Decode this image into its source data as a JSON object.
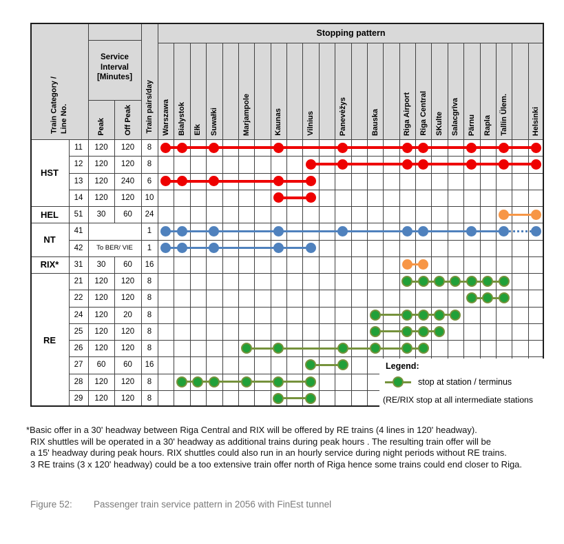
{
  "header": {
    "stopping_pattern_label": "Stopping pattern",
    "train_category_label": "Train Category /\nLine No.",
    "service_interval_label": "Service\nInterval\n[Minutes]",
    "peak_label": "Peak",
    "off_peak_label": "Off Peak",
    "train_pairs_label": "Train pairs/day"
  },
  "stations": [
    "Warszawa",
    "Bialystok",
    "Ełk",
    "Suwałki",
    "",
    "Marjampole",
    "",
    "Kaunas",
    "",
    "Vilnius",
    "",
    "Panevėžys",
    "",
    "Bauska",
    "",
    "Riga Airport",
    "Riga Central",
    "SKulte",
    "Salacgrīva",
    "Pärnu",
    "Rapla",
    "Tallin Ülem.",
    "",
    "Helsinki"
  ],
  "groups": [
    {
      "label": "HST",
      "span": 4
    },
    {
      "label": "HEL",
      "span": 1
    },
    {
      "label": "NT",
      "span": 2
    },
    {
      "label": "RIX*",
      "span": 1
    },
    {
      "label": "RE",
      "span": 8
    }
  ],
  "rows": [
    {
      "line_no": "11",
      "peak": "120",
      "off_peak": "120",
      "pairs_per_day": "8",
      "color": "red",
      "stops": [
        "Warszawa",
        "Bialystok",
        "Suwałki",
        "Kaunas",
        "Panevėžys",
        "Riga Airport",
        "Riga Central",
        "Pärnu",
        "Tallin Ülem.",
        "Helsinki"
      ]
    },
    {
      "line_no": "12",
      "peak": "120",
      "off_peak": "120",
      "pairs_per_day": "8",
      "color": "red",
      "stops": [
        "Vilnius",
        "Panevėžys",
        "Riga Airport",
        "Riga Central",
        "Pärnu",
        "Tallin Ülem.",
        "Helsinki"
      ]
    },
    {
      "line_no": "13",
      "peak": "120",
      "off_peak": "240",
      "pairs_per_day": "6",
      "color": "red",
      "stops": [
        "Warszawa",
        "Bialystok",
        "Suwałki",
        "Kaunas",
        "Vilnius"
      ]
    },
    {
      "line_no": "14",
      "peak": "120",
      "off_peak": "120",
      "pairs_per_day": "10",
      "color": "red",
      "stops": [
        "Kaunas",
        "Vilnius"
      ]
    },
    {
      "line_no": "51",
      "peak": "30",
      "off_peak": "60",
      "pairs_per_day": "24",
      "color": "orange",
      "stops": [
        "Tallin Ülem.",
        "Helsinki"
      ]
    },
    {
      "line_no": "41",
      "interval_merged": true,
      "interval_note": "",
      "pairs_per_day": "1",
      "color": "blue",
      "stops": [
        "Warszawa",
        "Bialystok",
        "Suwałki",
        "Kaunas",
        "Panevėžys",
        "Riga Airport",
        "Riga Central",
        "Pärnu",
        "Tallin Ülem.",
        "Helsinki"
      ],
      "dotted_segment": [
        "Tallin Ülem.",
        "Helsinki"
      ]
    },
    {
      "line_no": "42",
      "interval_merged": true,
      "interval_note": "To BER/ VIE",
      "pairs_per_day": "1",
      "color": "blue",
      "stops": [
        "Warszawa",
        "Bialystok",
        "Suwałki",
        "Kaunas",
        "Vilnius"
      ]
    },
    {
      "line_no": "31",
      "peak": "30",
      "off_peak": "60",
      "pairs_per_day": "16",
      "color": "orange",
      "stops": [
        "Riga Airport",
        "Riga Central"
      ]
    },
    {
      "line_no": "21",
      "peak": "120",
      "off_peak": "120",
      "pairs_per_day": "8",
      "color": "green",
      "stops": [
        "Riga Airport",
        "Riga Central",
        "SKulte",
        "Salacgrīva",
        "Pärnu",
        "Rapla",
        "Tallin Ülem."
      ]
    },
    {
      "line_no": "22",
      "peak": "120",
      "off_peak": "120",
      "pairs_per_day": "8",
      "color": "green",
      "stops": [
        "Pärnu",
        "Rapla",
        "Tallin Ülem."
      ]
    },
    {
      "line_no": "24",
      "peak": "120",
      "off_peak": "20",
      "pairs_per_day": "8",
      "color": "green",
      "stops": [
        "Bauska",
        "Riga Airport",
        "Riga Central",
        "SKulte",
        "Salacgrīva"
      ]
    },
    {
      "line_no": "25",
      "peak": "120",
      "off_peak": "120",
      "pairs_per_day": "8",
      "color": "green",
      "stops": [
        "Bauska",
        "Riga Airport",
        "Riga Central",
        "SKulte"
      ]
    },
    {
      "line_no": "26",
      "peak": "120",
      "off_peak": "120",
      "pairs_per_day": "8",
      "color": "green",
      "stops": [
        "Marjampole",
        "Kaunas",
        "Panevėžys",
        "Bauska",
        "Riga Airport",
        "Riga Central"
      ]
    },
    {
      "line_no": "27",
      "peak": "60",
      "off_peak": "60",
      "pairs_per_day": "16",
      "color": "green",
      "stops": [
        "Vilnius",
        "Panevėžys"
      ]
    },
    {
      "line_no": "28",
      "peak": "120",
      "off_peak": "120",
      "pairs_per_day": "8",
      "color": "green",
      "stops": [
        "Bialystok",
        "Ełk",
        "Suwałki",
        "Marjampole",
        "Kaunas",
        "Vilnius"
      ]
    },
    {
      "line_no": "29",
      "peak": "120",
      "off_peak": "120",
      "pairs_per_day": "8",
      "color": "green",
      "stops": [
        "Kaunas",
        "Vilnius"
      ]
    }
  ],
  "legend": {
    "title": "Legend:",
    "stop_label": "stop at station / terminus",
    "note": "(RE/RIX stop at all intermediate stations"
  },
  "footnote_lines": [
    "*Basic offer in a 30' headway between Riga Central and RIX will be offered by RE trains (4 lines in 120' headway).",
    "RIX shuttles will be operated in a 30' headway as additional trains during peak hours . The resulting train offer will be",
    "a 15' headway during peak hours. RIX shuttles could also run in an hourly service during night periods without RE trains.",
    "3 RE trains (3 x 120' headway) could be a too extensive train offer north of Riga hence some trains could end closer to Riga."
  ],
  "caption": {
    "label": "Figure 52:",
    "text": "Passenger train service pattern in 2056 with FinEst tunnel"
  },
  "colors": {
    "red": "#ee0000",
    "blue": "#4f81bd",
    "orange": "#f79646",
    "green": "#21a038",
    "green_edge": "#76923c",
    "header_bg": "#d9d9d9",
    "grid": "#404040",
    "caption": "#7b7b7b"
  }
}
